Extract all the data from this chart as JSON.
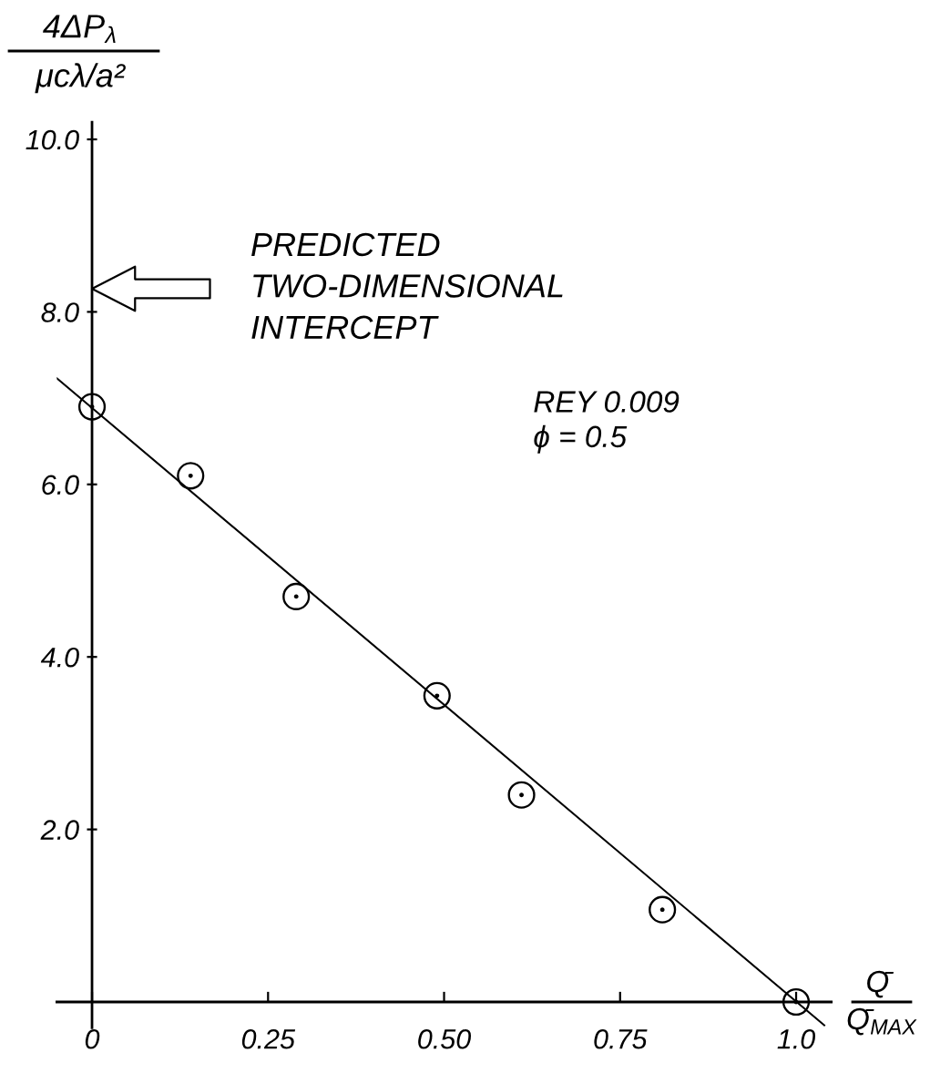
{
  "chart_data": {
    "type": "scatter",
    "xlabel": "Q̄\nQ̄$_{MAX}$",
    "ylabel": "4ΔP$_{λ}$\nμcλ/a²",
    "annotations": [
      "PREDICTED\nTWO-DIMENSIONAL\nINTERCEPT",
      "REY 0.009\nϕ = 0.5"
    ],
    "xlim": [
      -0.05,
      1.05
    ],
    "ylim": [
      -0.3,
      10.2
    ],
    "xticks": [
      0,
      0.25,
      {
        "value": 0.5,
        "label": "0.50"
      },
      0.75,
      {
        "value": 1,
        "label": "1.0"
      }
    ],
    "yticks": [
      {
        "value": 2,
        "label": "2.0"
      },
      {
        "value": 4,
        "label": "4.0"
      },
      {
        "value": 6,
        "label": "6.0"
      },
      {
        "value": 8,
        "label": "8.0"
      },
      {
        "value": 10,
        "label": "10.0"
      }
    ],
    "series": [
      {
        "color": "#000000",
        "marker": "circle",
        "x": [
          0,
          0.14,
          0.29,
          0.49,
          0.61,
          0.81,
          1.0
        ],
        "values": [
          6.9,
          6.1,
          4.7,
          3.55,
          2.4,
          1.07,
          0
        ]
      },
      {
        "type": "line",
        "color": "#000000",
        "marker": "none",
        "line_style": "solid",
        "x": [
          -0.05,
          1.04
        ],
        "values": [
          7.23,
          -0.27
        ]
      }
    ]
  }
}
